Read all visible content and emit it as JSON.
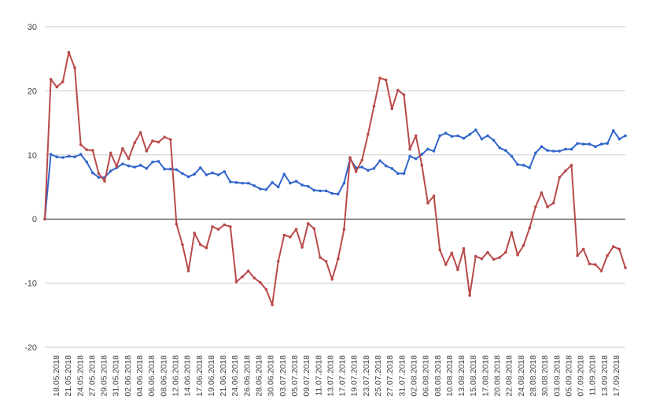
{
  "chart_data": {
    "type": "line",
    "title": "",
    "xlabel": "",
    "ylabel": "",
    "ylim": [
      -20,
      30
    ],
    "yticks": [
      -20,
      -10,
      0,
      10,
      20,
      30
    ],
    "grid": true,
    "legend": "none",
    "x_tick_labels": [
      "18.05.2018",
      "21.05.2018",
      "24.05.2018",
      "27.05.2018",
      "29.05.2018",
      "31.05.2018",
      "02.06.2018",
      "04.06.2018",
      "06.06.2018",
      "08.06.2018",
      "12.06.2018",
      "14.06.2018",
      "17.06.2018",
      "19.06.2018",
      "21.06.2018",
      "24.06.2018",
      "26.06.2018",
      "28.06.2018",
      "30.06.2018",
      "03.07.2018",
      "05.07.2018",
      "09.07.2018",
      "11.07.2018",
      "13.07.2018",
      "17.07.2018",
      "19.07.2018",
      "23.07.2018",
      "25.07.2018",
      "27.07.2018",
      "31.07.2018",
      "02.08.2018",
      "06.08.2018",
      "08.08.2018",
      "10.08.2018",
      "13.08.2018",
      "15.08.2018",
      "17.08.2018",
      "20.08.2018",
      "22.08.2018",
      "24.08.2018",
      "28.08.2018",
      "30.08.2018",
      "03.09.2018",
      "05.09.2018",
      "07.09.2018",
      "11.09.2018",
      "13.09.2018",
      "17.09.2018"
    ],
    "series": [
      {
        "color": "#3366cc",
        "values": [
          0,
          10.1,
          9.7,
          9.6,
          9.8,
          9.7,
          10.1,
          8.9,
          7.2,
          6.5,
          6.5,
          7.5,
          8.0,
          8.6,
          8.3,
          8.1,
          8.4,
          7.9,
          8.9,
          9.0,
          7.8,
          7.8,
          7.7,
          7.1,
          6.6,
          7.0,
          8.0,
          6.9,
          7.2,
          6.9,
          7.4,
          5.8,
          5.7,
          5.6,
          5.6,
          5.2,
          4.7,
          4.6,
          5.7,
          5.0,
          7.0,
          5.6,
          5.9,
          5.3,
          5.1,
          4.5,
          4.4,
          4.4,
          4.0,
          3.9,
          5.6,
          9.4,
          8.0,
          8.1,
          7.6,
          7.9,
          9.1,
          8.3,
          7.9,
          7.1,
          7.1,
          9.8,
          9.4,
          10.1,
          10.9,
          10.6,
          13.0,
          13.4,
          12.9,
          13.0,
          12.6,
          13.2,
          13.9,
          12.5,
          13.0,
          12.3,
          11.1,
          10.7,
          9.8,
          8.5,
          8.4,
          8.0,
          10.3,
          11.3,
          10.7,
          10.6,
          10.6,
          10.9,
          10.9,
          11.8,
          11.7,
          11.7,
          11.3,
          11.7,
          11.8,
          13.8,
          12.5,
          13.0
        ]
      },
      {
        "color": "#b94a4a",
        "values": [
          0,
          21.8,
          20.6,
          21.4,
          26.0,
          23.6,
          11.6,
          10.8,
          10.7,
          7.1,
          5.9,
          10.3,
          8.2,
          11.0,
          9.4,
          11.9,
          13.5,
          10.6,
          12.2,
          12.0,
          12.8,
          12.4,
          -0.8,
          -4.0,
          -8.1,
          -2.2,
          -4.0,
          -4.5,
          -1.2,
          -1.6,
          -0.9,
          -1.2,
          -9.8,
          -9.0,
          -8.1,
          -9.2,
          -9.9,
          -11.0,
          -13.4,
          -6.6,
          -2.5,
          -2.8,
          -1.6,
          -4.4,
          -0.7,
          -1.5,
          -6.0,
          -6.6,
          -9.4,
          -6.2,
          -1.6,
          9.6,
          7.4,
          9.2,
          13.2,
          17.6,
          22.0,
          21.7,
          17.2,
          20.1,
          19.4,
          10.9,
          13.0,
          8.4,
          2.5,
          3.6,
          -4.8,
          -7.1,
          -5.3,
          -7.9,
          -4.6,
          -11.9,
          -5.8,
          -6.2,
          -5.2,
          -6.3,
          -6.0,
          -5.2,
          -2.1,
          -5.6,
          -4.1,
          -1.4,
          1.9,
          4.1,
          1.9,
          2.5,
          6.5,
          7.5,
          8.4,
          -5.7,
          -4.7,
          -7.0,
          -7.1,
          -8.1,
          -5.7,
          -4.3,
          -4.7,
          -7.6
        ]
      }
    ]
  }
}
